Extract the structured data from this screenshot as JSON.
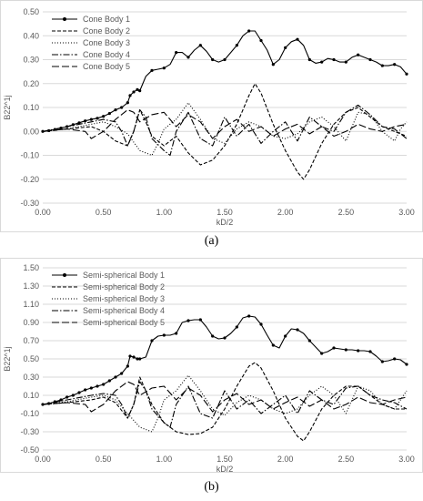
{
  "chart_data": [
    {
      "type": "line",
      "panel": "(a)",
      "xlabel": "kD/2",
      "ylabel": "B22^1j",
      "xlim": [
        0,
        3
      ],
      "ylim": [
        -0.3,
        0.5
      ],
      "xticks": [
        "0.00",
        "0.50",
        "1.00",
        "1.50",
        "2.00",
        "2.50",
        "3.00"
      ],
      "yticks": [
        "-0.30",
        "-0.20",
        "-0.10",
        "0.00",
        "0.10",
        "0.20",
        "0.30",
        "0.40",
        "0.50"
      ],
      "grid": "horizontal",
      "legend": "top-left",
      "series": [
        {
          "name": "Cone Body 1",
          "style": "solid-markers",
          "x": [
            0,
            0.05,
            0.1,
            0.15,
            0.2,
            0.25,
            0.3,
            0.35,
            0.4,
            0.45,
            0.5,
            0.55,
            0.6,
            0.65,
            0.7,
            0.72,
            0.75,
            0.78,
            0.8,
            0.85,
            0.9,
            0.95,
            1.0,
            1.05,
            1.1,
            1.15,
            1.2,
            1.25,
            1.3,
            1.35,
            1.4,
            1.45,
            1.5,
            1.55,
            1.6,
            1.65,
            1.7,
            1.75,
            1.8,
            1.85,
            1.9,
            1.95,
            2.0,
            2.05,
            2.1,
            2.15,
            2.2,
            2.25,
            2.3,
            2.35,
            2.4,
            2.45,
            2.5,
            2.55,
            2.6,
            2.65,
            2.7,
            2.75,
            2.8,
            2.85,
            2.9,
            2.95,
            3.0
          ],
          "y": [
            0,
            0.003,
            0.008,
            0.014,
            0.02,
            0.028,
            0.036,
            0.044,
            0.05,
            0.055,
            0.063,
            0.075,
            0.09,
            0.1,
            0.12,
            0.15,
            0.165,
            0.175,
            0.17,
            0.23,
            0.255,
            0.26,
            0.265,
            0.28,
            0.33,
            0.33,
            0.31,
            0.34,
            0.36,
            0.335,
            0.3,
            0.29,
            0.3,
            0.33,
            0.36,
            0.4,
            0.42,
            0.42,
            0.38,
            0.34,
            0.28,
            0.3,
            0.35,
            0.375,
            0.385,
            0.36,
            0.3,
            0.285,
            0.29,
            0.305,
            0.3,
            0.29,
            0.29,
            0.31,
            0.32,
            0.31,
            0.3,
            0.29,
            0.275,
            0.275,
            0.28,
            0.27,
            0.24
          ]
        },
        {
          "name": "Cone Body 2",
          "style": "dash",
          "x": [
            0,
            0.2,
            0.4,
            0.5,
            0.6,
            0.7,
            0.75,
            0.8,
            0.85,
            0.9,
            1.0,
            1.1,
            1.2,
            1.3,
            1.4,
            1.5,
            1.6,
            1.7,
            1.75,
            1.8,
            1.9,
            2.0,
            2.1,
            2.15,
            2.2,
            2.3,
            2.4,
            2.5,
            2.6,
            2.7,
            2.8,
            2.9,
            3.0
          ],
          "y": [
            0,
            0.01,
            0.02,
            0.0,
            -0.04,
            -0.06,
            0.0,
            0.09,
            0.04,
            -0.02,
            -0.06,
            -0.02,
            -0.09,
            -0.14,
            -0.12,
            -0.06,
            0.03,
            0.15,
            0.2,
            0.16,
            0.03,
            -0.08,
            -0.17,
            -0.2,
            -0.16,
            -0.05,
            0.03,
            0.08,
            0.1,
            0.06,
            0.02,
            0.0,
            -0.02
          ]
        },
        {
          "name": "Cone Body 3",
          "style": "dot",
          "x": [
            0,
            0.2,
            0.4,
            0.5,
            0.6,
            0.7,
            0.8,
            0.9,
            0.95,
            1.0,
            1.1,
            1.2,
            1.3,
            1.4,
            1.5,
            1.6,
            1.7,
            1.8,
            1.9,
            2.0,
            2.1,
            2.2,
            2.3,
            2.4,
            2.5,
            2.6,
            2.7,
            2.8,
            2.9,
            2.95,
            3.0
          ],
          "y": [
            0,
            0.01,
            0.03,
            0.04,
            0.02,
            -0.01,
            -0.08,
            -0.1,
            -0.05,
            0.01,
            0.05,
            0.12,
            0.05,
            -0.03,
            -0.05,
            0.01,
            0.04,
            0.02,
            -0.02,
            -0.03,
            -0.01,
            0.04,
            0.06,
            0.02,
            -0.04,
            0.08,
            0.07,
            0.0,
            -0.04,
            0.01,
            0.04
          ]
        },
        {
          "name": "Cone Body 4",
          "style": "dash-dot",
          "x": [
            0,
            0.2,
            0.4,
            0.5,
            0.6,
            0.65,
            0.7,
            0.75,
            0.8,
            0.85,
            0.9,
            1.0,
            1.05,
            1.1,
            1.2,
            1.3,
            1.4,
            1.5,
            1.6,
            1.7,
            1.8,
            1.9,
            2.0,
            2.1,
            2.2,
            2.3,
            2.4,
            2.5,
            2.6,
            2.7,
            2.8,
            2.9,
            3.0
          ],
          "y": [
            0,
            0.02,
            0.04,
            0.05,
            0.04,
            0.0,
            -0.06,
            0.0,
            0.09,
            0.06,
            -0.03,
            -0.08,
            -0.1,
            0.0,
            0.08,
            -0.03,
            -0.06,
            0.06,
            -0.02,
            0.03,
            -0.05,
            0.0,
            0.04,
            -0.04,
            0.06,
            0.02,
            0.0,
            0.08,
            0.11,
            0.07,
            0.02,
            0.01,
            -0.03
          ]
        },
        {
          "name": "Cone Body 5",
          "style": "long-dash",
          "x": [
            0,
            0.2,
            0.35,
            0.4,
            0.5,
            0.6,
            0.7,
            0.75,
            0.8,
            0.9,
            1.0,
            1.1,
            1.2,
            1.3,
            1.4,
            1.5,
            1.6,
            1.7,
            1.8,
            1.9,
            2.0,
            2.1,
            2.2,
            2.3,
            2.4,
            2.5,
            2.6,
            2.7,
            2.8,
            2.9,
            3.0
          ],
          "y": [
            0,
            0.01,
            0.0,
            -0.03,
            0.0,
            0.05,
            0.09,
            0.08,
            0.04,
            0.07,
            0.08,
            0.02,
            0.07,
            0.04,
            -0.03,
            0.02,
            0.05,
            0.0,
            0.02,
            -0.02,
            0.01,
            0.03,
            -0.01,
            0.02,
            -0.02,
            0.0,
            0.03,
            0.01,
            0.0,
            0.02,
            0.03
          ]
        }
      ]
    },
    {
      "type": "line",
      "panel": "(b)",
      "xlabel": "kD/2",
      "ylabel": "B22^1j",
      "xlim": [
        0,
        3
      ],
      "ylim": [
        -0.5,
        1.5
      ],
      "xticks": [
        "0.00",
        "0.50",
        "1.00",
        "1.50",
        "2.00",
        "2.50",
        "3.00"
      ],
      "yticks": [
        "-0.50",
        "-0.30",
        "-0.10",
        "0.10",
        "0.30",
        "0.50",
        "0.70",
        "0.90",
        "1.10",
        "1.30",
        "1.50"
      ],
      "grid": "horizontal",
      "legend": "top-left",
      "series": [
        {
          "name": "Semi-spherical Body 1",
          "style": "solid-markers",
          "x": [
            0,
            0.05,
            0.1,
            0.15,
            0.2,
            0.25,
            0.3,
            0.35,
            0.4,
            0.45,
            0.5,
            0.55,
            0.6,
            0.65,
            0.7,
            0.72,
            0.75,
            0.78,
            0.8,
            0.85,
            0.9,
            0.95,
            1.0,
            1.05,
            1.1,
            1.15,
            1.2,
            1.25,
            1.3,
            1.35,
            1.4,
            1.45,
            1.5,
            1.55,
            1.6,
            1.65,
            1.7,
            1.75,
            1.8,
            1.85,
            1.9,
            1.95,
            2.0,
            2.05,
            2.1,
            2.15,
            2.2,
            2.25,
            2.3,
            2.35,
            2.4,
            2.45,
            2.5,
            2.55,
            2.6,
            2.65,
            2.7,
            2.75,
            2.8,
            2.85,
            2.9,
            2.95,
            3.0
          ],
          "y": [
            0,
            0.01,
            0.03,
            0.05,
            0.08,
            0.1,
            0.13,
            0.16,
            0.18,
            0.2,
            0.22,
            0.26,
            0.3,
            0.34,
            0.42,
            0.53,
            0.52,
            0.5,
            0.5,
            0.52,
            0.7,
            0.75,
            0.76,
            0.76,
            0.78,
            0.9,
            0.92,
            0.93,
            0.93,
            0.85,
            0.75,
            0.72,
            0.73,
            0.78,
            0.85,
            0.95,
            0.97,
            0.96,
            0.88,
            0.76,
            0.65,
            0.62,
            0.75,
            0.83,
            0.82,
            0.78,
            0.7,
            0.63,
            0.56,
            0.58,
            0.62,
            0.61,
            0.6,
            0.6,
            0.59,
            0.59,
            0.58,
            0.53,
            0.47,
            0.48,
            0.5,
            0.49,
            0.44
          ]
        },
        {
          "name": "Semi-spherical Body 2",
          "style": "dash",
          "x": [
            0,
            0.2,
            0.4,
            0.5,
            0.6,
            0.7,
            0.75,
            0.8,
            0.85,
            0.9,
            1.0,
            1.1,
            1.2,
            1.3,
            1.4,
            1.5,
            1.6,
            1.7,
            1.75,
            1.8,
            1.9,
            2.0,
            2.1,
            2.15,
            2.2,
            2.3,
            2.4,
            2.5,
            2.6,
            2.7,
            2.8,
            2.9,
            3.0
          ],
          "y": [
            0,
            0.02,
            0.05,
            0.08,
            0.02,
            -0.15,
            0.0,
            0.3,
            0.15,
            0.0,
            -0.2,
            -0.3,
            -0.33,
            -0.32,
            -0.25,
            -0.05,
            0.2,
            0.42,
            0.46,
            0.4,
            0.15,
            -0.15,
            -0.35,
            -0.4,
            -0.3,
            -0.05,
            0.1,
            0.2,
            0.2,
            0.1,
            0.0,
            -0.05,
            -0.05
          ]
        },
        {
          "name": "Semi-spherical Body 3",
          "style": "dot",
          "x": [
            0,
            0.2,
            0.4,
            0.5,
            0.6,
            0.7,
            0.8,
            0.9,
            0.95,
            1.0,
            1.1,
            1.2,
            1.3,
            1.4,
            1.5,
            1.6,
            1.7,
            1.8,
            1.9,
            2.0,
            2.1,
            2.2,
            2.3,
            2.4,
            2.5,
            2.6,
            2.7,
            2.8,
            2.9,
            2.95,
            3.0
          ],
          "y": [
            0,
            0.03,
            0.08,
            0.1,
            0.05,
            -0.1,
            -0.25,
            -0.3,
            -0.15,
            0.05,
            0.15,
            0.32,
            0.15,
            -0.05,
            -0.12,
            0.02,
            0.1,
            0.05,
            -0.05,
            -0.1,
            -0.05,
            0.1,
            0.2,
            0.1,
            -0.1,
            0.2,
            0.15,
            0.0,
            -0.05,
            0.05,
            0.15
          ]
        },
        {
          "name": "Semi-spherical Body 4",
          "style": "dash-dot",
          "x": [
            0,
            0.2,
            0.4,
            0.5,
            0.6,
            0.65,
            0.7,
            0.75,
            0.8,
            0.85,
            0.9,
            1.0,
            1.05,
            1.1,
            1.2,
            1.3,
            1.4,
            1.5,
            1.6,
            1.7,
            1.8,
            1.9,
            2.0,
            2.1,
            2.2,
            2.3,
            2.4,
            2.5,
            2.6,
            2.7,
            2.8,
            2.9,
            3.0
          ],
          "y": [
            0,
            0.05,
            0.1,
            0.12,
            0.1,
            0.0,
            -0.15,
            0.0,
            0.25,
            0.15,
            -0.05,
            -0.2,
            -0.25,
            0.0,
            0.2,
            -0.1,
            -0.15,
            0.15,
            -0.05,
            0.05,
            -0.1,
            0.0,
            0.1,
            -0.1,
            0.15,
            0.05,
            0.0,
            0.18,
            0.2,
            0.1,
            0.05,
            0.02,
            -0.05
          ]
        },
        {
          "name": "Semi-spherical Body 5",
          "style": "long-dash",
          "x": [
            0,
            0.2,
            0.35,
            0.4,
            0.5,
            0.6,
            0.7,
            0.75,
            0.8,
            0.9,
            1.0,
            1.1,
            1.2,
            1.3,
            1.4,
            1.5,
            1.6,
            1.7,
            1.8,
            1.9,
            2.0,
            2.1,
            2.2,
            2.3,
            2.4,
            2.5,
            2.6,
            2.7,
            2.8,
            2.9,
            3.0
          ],
          "y": [
            0,
            0.02,
            0.0,
            -0.08,
            0.0,
            0.15,
            0.25,
            0.22,
            0.1,
            0.18,
            0.2,
            0.05,
            0.18,
            0.1,
            -0.08,
            0.05,
            0.12,
            0.0,
            0.05,
            -0.05,
            0.02,
            0.08,
            -0.02,
            0.05,
            -0.05,
            0.0,
            0.08,
            0.02,
            0.0,
            0.05,
            0.08
          ]
        }
      ]
    }
  ],
  "captions": {
    "a": "(a)",
    "b": "(b)"
  }
}
